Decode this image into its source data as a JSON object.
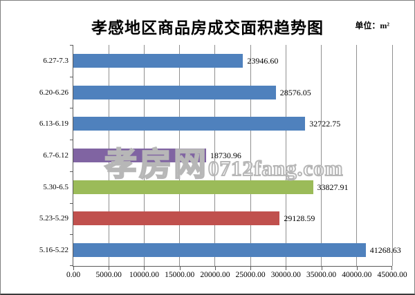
{
  "page": {
    "background": "#ffffff",
    "border_color": "#7e7e7e"
  },
  "chart_data": {
    "type": "bar",
    "orientation": "horizontal",
    "title": "孝感地区商品房成交面积趋势图",
    "unit_label": "单位：m²",
    "categories": [
      "6.27-7.3",
      "6.20-6.26",
      "6.13-6.19",
      "6.7-6.12",
      "5.30-6.5",
      "5.23-5.29",
      "5.16-5.22"
    ],
    "values": [
      23946.6,
      28576.05,
      32722.75,
      18730.96,
      33827.91,
      29128.59,
      41268.63
    ],
    "value_labels": [
      "23946.60",
      "28576.05",
      "32722.75",
      "18730.96",
      "33827.91",
      "29128.59",
      "41268.63"
    ],
    "bar_colors": [
      "#4f81bd",
      "#4f81bd",
      "#4f81bd",
      "#8064a2",
      "#9bbb59",
      "#c0504d",
      "#4f81bd"
    ],
    "xlim": [
      0,
      45000
    ],
    "x_tick_labels": [
      "0.00",
      "5000.00",
      "10000.00",
      "15000.00",
      "20000.00",
      "25000.00",
      "30000.00",
      "35000.00",
      "40000.00",
      "45000.00"
    ],
    "grid": "vertical-gridlines-on",
    "legend": "none",
    "axis_color": "#595959",
    "grid_color": "#8f8f8f",
    "watermark": {
      "cn": "孝房网",
      "latin": "0712fang.com"
    }
  }
}
